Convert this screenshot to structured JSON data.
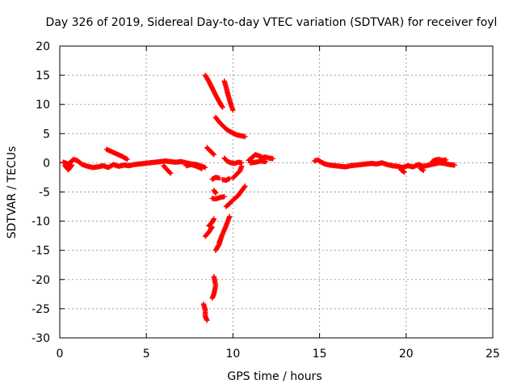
{
  "chart_data": {
    "type": "scatter",
    "title": "Day 326 of 2019, Sidereal Day-to-day VTEC variation (SDTVAR) for receiver foyl",
    "xlabel": "GPS time / hours",
    "ylabel": "SDTVAR / TECUs",
    "xlim": [
      0,
      25
    ],
    "ylim": [
      -30,
      20
    ],
    "xticks": [
      0,
      5,
      10,
      15,
      20,
      25
    ],
    "yticks": [
      -30,
      -25,
      -20,
      -15,
      -10,
      -5,
      0,
      5,
      10,
      15,
      20
    ],
    "grid": true,
    "marker": "plus",
    "color": "#ff0000",
    "series": [
      {
        "name": "SDTVAR",
        "tracks": [
          [
            [
              0.2,
              0.1
            ],
            [
              0.5,
              -0.2
            ],
            [
              0.8,
              0.6
            ],
            [
              1.0,
              0.4
            ],
            [
              1.3,
              -0.3
            ],
            [
              1.6,
              -0.6
            ],
            [
              1.9,
              -0.8
            ],
            [
              2.2,
              -0.7
            ],
            [
              2.5,
              -0.5
            ],
            [
              2.8,
              -0.8
            ],
            [
              3.1,
              -0.3
            ],
            [
              3.4,
              -0.6
            ],
            [
              3.7,
              -0.4
            ],
            [
              4.0,
              -0.5
            ],
            [
              4.3,
              -0.3
            ],
            [
              4.6,
              -0.2
            ],
            [
              4.9,
              -0.1
            ],
            [
              5.2,
              0.0
            ],
            [
              5.5,
              0.1
            ],
            [
              5.8,
              0.2
            ],
            [
              6.1,
              0.3
            ],
            [
              6.4,
              0.2
            ],
            [
              6.7,
              0.1
            ],
            [
              7.0,
              0.2
            ],
            [
              7.3,
              0.0
            ],
            [
              7.6,
              -0.2
            ],
            [
              7.9,
              -0.3
            ],
            [
              8.2,
              -0.6
            ],
            [
              8.4,
              -0.8
            ]
          ],
          [
            [
              0.3,
              -0.5
            ],
            [
              0.5,
              -1.2
            ],
            [
              0.7,
              -0.4
            ]
          ],
          [
            [
              2.7,
              2.3
            ],
            [
              3.0,
              1.9
            ],
            [
              3.3,
              1.5
            ],
            [
              3.6,
              1.1
            ],
            [
              3.9,
              0.6
            ]
          ],
          [
            [
              6.0,
              -0.5
            ],
            [
              6.2,
              -1.2
            ],
            [
              6.4,
              -1.8
            ]
          ],
          [
            [
              7.3,
              -0.5
            ],
            [
              7.6,
              -0.3
            ],
            [
              7.9,
              -0.6
            ],
            [
              8.2,
              -1.0
            ]
          ],
          [
            [
              8.4,
              15.0
            ],
            [
              8.6,
              14.0
            ],
            [
              8.8,
              12.8
            ],
            [
              9.0,
              11.6
            ],
            [
              9.2,
              10.5
            ],
            [
              9.4,
              9.5
            ]
          ],
          [
            [
              9.5,
              14.0
            ],
            [
              9.6,
              13.0
            ],
            [
              9.7,
              11.8
            ],
            [
              9.8,
              10.8
            ],
            [
              9.9,
              9.8
            ],
            [
              10.0,
              9.0
            ]
          ],
          [
            [
              9.0,
              7.8
            ],
            [
              9.2,
              7.0
            ],
            [
              9.4,
              6.4
            ],
            [
              9.6,
              5.8
            ],
            [
              9.8,
              5.4
            ],
            [
              10.0,
              5.1
            ],
            [
              10.2,
              4.8
            ],
            [
              10.5,
              4.6
            ],
            [
              10.7,
              4.5
            ]
          ],
          [
            [
              8.5,
              2.6
            ],
            [
              8.7,
              2.0
            ],
            [
              8.9,
              1.4
            ]
          ],
          [
            [
              9.5,
              0.8
            ],
            [
              9.7,
              0.2
            ],
            [
              9.9,
              0.0
            ],
            [
              10.1,
              -0.1
            ],
            [
              10.3,
              0.1
            ],
            [
              10.5,
              0.0
            ]
          ],
          [
            [
              10.5,
              -0.6
            ],
            [
              10.4,
              -1.4
            ],
            [
              10.2,
              -2.0
            ],
            [
              10.0,
              -2.6
            ]
          ],
          [
            [
              8.8,
              -2.8
            ],
            [
              9.0,
              -2.5
            ],
            [
              9.2,
              -2.6
            ]
          ],
          [
            [
              9.4,
              -2.9
            ],
            [
              9.6,
              -3.0
            ],
            [
              9.8,
              -2.7
            ]
          ],
          [
            [
              8.9,
              -4.7
            ],
            [
              9.0,
              -5.2
            ]
          ],
          [
            [
              8.8,
              -6.1
            ],
            [
              9.0,
              -6.2
            ],
            [
              9.3,
              -5.9
            ],
            [
              9.5,
              -5.8
            ]
          ],
          [
            [
              9.6,
              -7.5
            ],
            [
              9.8,
              -7.0
            ],
            [
              10.0,
              -6.4
            ],
            [
              10.3,
              -5.6
            ],
            [
              10.5,
              -4.8
            ],
            [
              10.7,
              -4.0
            ]
          ],
          [
            [
              8.6,
              -10.8
            ],
            [
              8.8,
              -10.2
            ],
            [
              8.9,
              -9.6
            ]
          ],
          [
            [
              8.4,
              -12.6
            ],
            [
              8.6,
              -11.9
            ],
            [
              8.8,
              -11.0
            ]
          ],
          [
            [
              9.2,
              -13.7
            ],
            [
              9.4,
              -12.2
            ],
            [
              9.6,
              -10.8
            ],
            [
              9.8,
              -9.2
            ]
          ],
          [
            [
              9.0,
              -15.0
            ],
            [
              9.2,
              -14.0
            ],
            [
              9.3,
              -13.0
            ]
          ],
          [
            [
              8.9,
              -19.5
            ],
            [
              9.0,
              -21.0
            ],
            [
              8.9,
              -22.5
            ],
            [
              8.8,
              -23.2
            ]
          ],
          [
            [
              8.3,
              -24.2
            ],
            [
              8.4,
              -25.2
            ],
            [
              8.4,
              -26.3
            ],
            [
              8.5,
              -27.0
            ]
          ],
          [
            [
              10.9,
              0.4
            ],
            [
              11.1,
              0.9
            ],
            [
              11.3,
              1.4
            ],
            [
              11.5,
              1.2
            ],
            [
              11.7,
              0.9
            ],
            [
              11.9,
              1.0
            ],
            [
              12.1,
              0.8
            ],
            [
              12.3,
              0.7
            ]
          ],
          [
            [
              11.0,
              0.0
            ],
            [
              11.3,
              0.1
            ],
            [
              11.6,
              0.3
            ],
            [
              11.9,
              0.2
            ]
          ],
          [
            [
              14.7,
              0.3
            ],
            [
              14.9,
              0.5
            ],
            [
              15.1,
              0.1
            ],
            [
              15.3,
              -0.2
            ],
            [
              15.6,
              -0.4
            ],
            [
              15.9,
              -0.5
            ],
            [
              16.2,
              -0.6
            ],
            [
              16.5,
              -0.7
            ],
            [
              16.8,
              -0.5
            ],
            [
              17.1,
              -0.4
            ],
            [
              17.4,
              -0.3
            ],
            [
              17.7,
              -0.2
            ],
            [
              18.0,
              -0.1
            ],
            [
              18.3,
              -0.2
            ],
            [
              18.6,
              0.0
            ],
            [
              18.9,
              -0.3
            ],
            [
              19.2,
              -0.5
            ],
            [
              19.5,
              -0.6
            ],
            [
              19.8,
              -0.8
            ],
            [
              20.1,
              -0.5
            ],
            [
              20.4,
              -0.7
            ],
            [
              20.7,
              -0.3
            ],
            [
              21.0,
              -0.6
            ],
            [
              21.3,
              -0.4
            ],
            [
              21.6,
              -0.2
            ],
            [
              21.9,
              0.0
            ],
            [
              22.2,
              -0.1
            ],
            [
              22.5,
              -0.3
            ],
            [
              22.8,
              -0.4
            ]
          ],
          [
            [
              19.7,
              -1.2
            ],
            [
              19.9,
              -1.6
            ]
          ],
          [
            [
              20.8,
              -0.9
            ],
            [
              21.0,
              -1.3
            ]
          ],
          [
            [
              21.5,
              0.2
            ],
            [
              21.7,
              0.5
            ],
            [
              21.9,
              0.6
            ],
            [
              22.1,
              0.4
            ],
            [
              22.3,
              0.5
            ]
          ]
        ]
      }
    ]
  }
}
